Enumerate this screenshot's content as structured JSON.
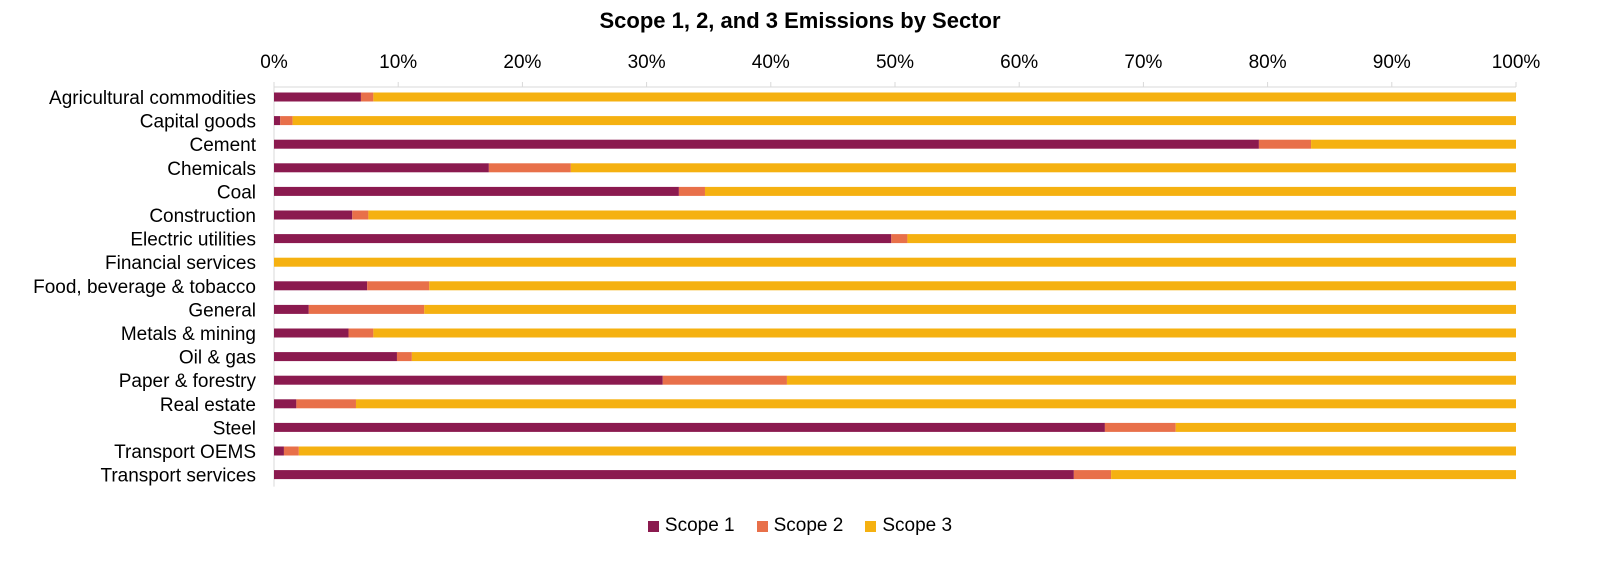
{
  "chart_data": {
    "type": "bar",
    "orientation": "horizontal",
    "stacked": "100%",
    "title": "Scope 1, 2, and 3 Emissions by Sector",
    "categories": [
      "Agricultural commodities",
      "Capital goods",
      "Cement",
      "Chemicals",
      "Coal",
      "Construction",
      "Electric utilities",
      "Financial services",
      "Food, beverage & tobacco",
      "General",
      "Metals & mining",
      "Oil & gas",
      "Paper & forestry",
      "Real estate",
      "Steel",
      "Transport OEMS",
      "Transport services"
    ],
    "series": [
      {
        "name": "Scope 1",
        "color": "#8B1A4F",
        "values": [
          7.0,
          0.5,
          79.3,
          17.3,
          32.6,
          6.3,
          49.7,
          0.0,
          7.5,
          2.8,
          6.0,
          9.9,
          31.3,
          1.8,
          66.9,
          0.8,
          64.4
        ]
      },
      {
        "name": "Scope 2",
        "color": "#E8704A",
        "values": [
          1.0,
          1.0,
          4.2,
          6.6,
          2.1,
          1.3,
          1.3,
          0.0,
          5.0,
          9.3,
          2.0,
          1.2,
          10.0,
          4.8,
          5.7,
          1.2,
          3.0
        ]
      },
      {
        "name": "Scope 3",
        "color": "#F5B111",
        "values": [
          92.0,
          98.5,
          16.5,
          76.1,
          65.3,
          92.4,
          49.0,
          100.0,
          87.5,
          87.9,
          92.0,
          88.9,
          58.7,
          93.4,
          27.4,
          98.0,
          32.6
        ]
      }
    ],
    "x_ticks": [
      "0%",
      "10%",
      "20%",
      "30%",
      "40%",
      "50%",
      "60%",
      "70%",
      "80%",
      "90%",
      "100%"
    ],
    "xlim": [
      0,
      100
    ],
    "xaxis_position": "top",
    "grid": false,
    "legend_position": "bottom"
  }
}
